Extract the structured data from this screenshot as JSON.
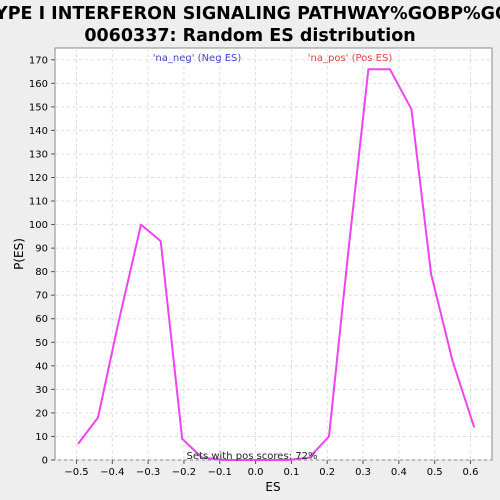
{
  "chart_data": {
    "type": "line",
    "title_line1": "TYPE I INTERFERON SIGNALING PATHWAY%GOBP%GO:",
    "title_line2": "0060337: Random ES distribution",
    "xlabel": "ES",
    "ylabel": "P(ES)",
    "xlim": [
      -0.56,
      0.66
    ],
    "ylim": [
      0,
      175
    ],
    "xticks": [
      -0.5,
      -0.4,
      -0.3,
      -0.2,
      -0.1,
      0.0,
      0.1,
      0.2,
      0.3,
      0.4,
      0.5,
      0.6
    ],
    "xtick_labels": [
      "−0.5",
      "−0.4",
      "−0.3",
      "−0.2",
      "−0.1",
      "0.0",
      "0.1",
      "0.2",
      "0.3",
      "0.4",
      "0.5",
      "0.6"
    ],
    "yticks": [
      0,
      10,
      20,
      30,
      40,
      50,
      60,
      70,
      80,
      90,
      100,
      110,
      120,
      130,
      140,
      150,
      160,
      170
    ],
    "grid": true,
    "series": [
      {
        "color": "#ee44ee",
        "x": [
          -0.495,
          -0.44,
          -0.385,
          -0.32,
          -0.265,
          -0.205,
          -0.15,
          -0.09,
          0.0,
          0.09,
          0.15,
          0.205,
          0.26,
          0.315,
          0.375,
          0.435,
          0.49,
          0.55,
          0.61
        ],
        "y": [
          7,
          18,
          57,
          100,
          93,
          9,
          1,
          0,
          0,
          0,
          1,
          10,
          90,
          166,
          166,
          149,
          79,
          42,
          14
        ]
      }
    ],
    "annotations": {
      "neg": {
        "text": "'na_neg' (Neg ES)",
        "color": "#4444cc"
      },
      "pos": {
        "text": "'na_pos' (Pos ES)",
        "color": "#dd4444"
      },
      "footnote": "Sets with pos scores: 72%"
    }
  }
}
